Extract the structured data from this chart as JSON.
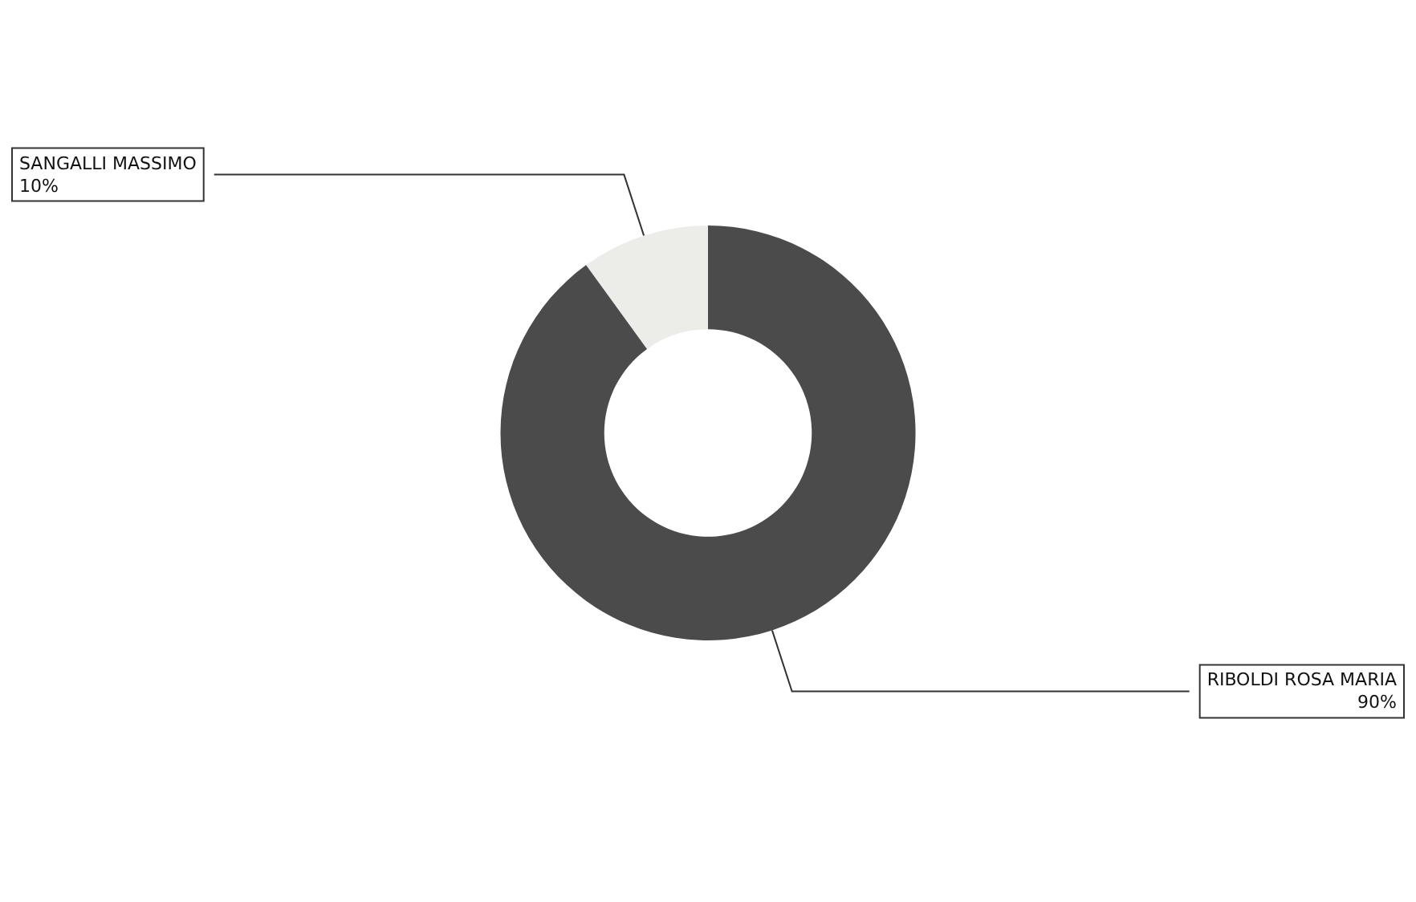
{
  "chart_data": {
    "type": "donut",
    "categories": [
      "SANGALLI MASSIMO",
      "RIBOLDI ROSA MARIA"
    ],
    "values": [
      10,
      90
    ],
    "value_labels": [
      "10%",
      "90%"
    ],
    "colors": [
      "#ecece9",
      "#4b4b4b"
    ],
    "legend": false
  }
}
